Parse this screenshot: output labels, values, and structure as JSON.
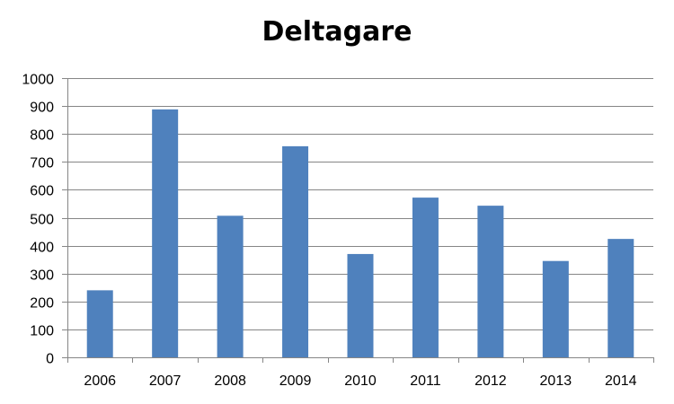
{
  "chart_data": {
    "type": "bar",
    "title": "Deltagare",
    "xlabel": "",
    "ylabel": "",
    "categories": [
      "2006",
      "2007",
      "2008",
      "2009",
      "2010",
      "2011",
      "2012",
      "2013",
      "2014"
    ],
    "values": [
      240,
      888,
      507,
      756,
      370,
      572,
      543,
      345,
      424
    ],
    "ylim": [
      0,
      1000
    ],
    "yticks": [
      0,
      100,
      200,
      300,
      400,
      500,
      600,
      700,
      800,
      900,
      1000
    ],
    "grid": true,
    "legend": "none",
    "colors": {
      "bar": "#4f81bd",
      "grid": "#868686",
      "axis": "#868686"
    }
  }
}
